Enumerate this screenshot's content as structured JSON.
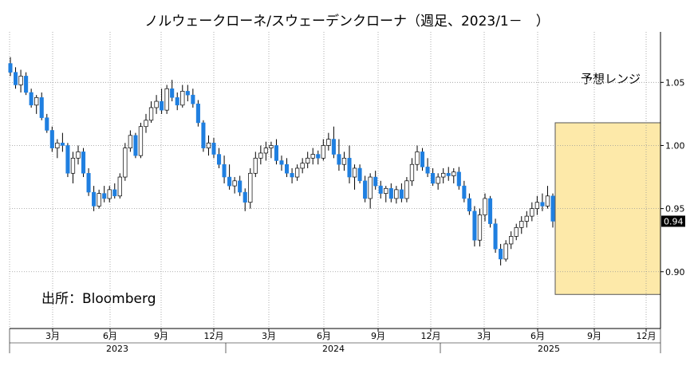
{
  "chart_data": {
    "type": "candlestick",
    "title": "ノルウェークローネ/スウェーデンクローナ（週足、2023/1－　）",
    "source": "出所：Bloomberg",
    "forecast_band": {
      "label": "予想レンジ",
      "low": 0.882,
      "high": 1.018,
      "color": "#fde9a9"
    },
    "ylim": [
      0.855,
      1.09
    ],
    "y_ticks": [
      {
        "value": 1.05,
        "label": "1.05"
      },
      {
        "value": 1.0,
        "label": "1.00"
      },
      {
        "value": 0.95,
        "label": "0.95"
      },
      {
        "value": 0.9,
        "label": "0.90"
      }
    ],
    "last_value": {
      "value": 0.94,
      "label": "0.94"
    },
    "x_month_ticks": [
      "3月",
      "6月",
      "9月",
      "12月",
      "3月",
      "6月",
      "9月",
      "12月",
      "3月",
      "6月",
      "9月",
      "12月"
    ],
    "x_year_labels": [
      "2023",
      "2024",
      "2025"
    ],
    "colors": {
      "up": "#ffffff",
      "down": "#1f7fe0",
      "wick": "#000000",
      "grid": "#999999"
    },
    "candles": [
      [
        1.065,
        1.07,
        1.055,
        1.058
      ],
      [
        1.058,
        1.062,
        1.045,
        1.048
      ],
      [
        1.048,
        1.06,
        1.042,
        1.055
      ],
      [
        1.055,
        1.058,
        1.04,
        1.042
      ],
      [
        1.042,
        1.045,
        1.03,
        1.032
      ],
      [
        1.032,
        1.04,
        1.025,
        1.038
      ],
      [
        1.038,
        1.042,
        1.02,
        1.022
      ],
      [
        1.022,
        1.025,
        1.01,
        1.012
      ],
      [
        1.012,
        1.015,
        0.995,
        0.998
      ],
      [
        0.998,
        1.005,
        0.99,
        1.002
      ],
      [
        1.002,
        1.01,
        0.995,
        1.0
      ],
      [
        1.0,
        1.002,
        0.975,
        0.978
      ],
      [
        0.978,
        0.995,
        0.97,
        0.99
      ],
      [
        0.99,
        1.0,
        0.985,
        0.995
      ],
      [
        0.995,
        0.998,
        0.975,
        0.978
      ],
      [
        0.978,
        0.982,
        0.96,
        0.963
      ],
      [
        0.963,
        0.968,
        0.948,
        0.952
      ],
      [
        0.952,
        0.965,
        0.95,
        0.962
      ],
      [
        0.962,
        0.968,
        0.955,
        0.958
      ],
      [
        0.958,
        0.968,
        0.955,
        0.965
      ],
      [
        0.965,
        0.97,
        0.958,
        0.96
      ],
      [
        0.96,
        0.978,
        0.958,
        0.975
      ],
      [
        0.975,
        1.002,
        0.972,
        0.998
      ],
      [
        0.998,
        1.012,
        0.995,
        1.008
      ],
      [
        1.008,
        1.01,
        0.99,
        0.992
      ],
      [
        0.992,
        1.018,
        0.99,
        1.015
      ],
      [
        1.015,
        1.025,
        1.01,
        1.02
      ],
      [
        1.02,
        1.035,
        1.018,
        1.03
      ],
      [
        1.03,
        1.04,
        1.025,
        1.035
      ],
      [
        1.035,
        1.045,
        1.025,
        1.028
      ],
      [
        1.028,
        1.048,
        1.025,
        1.045
      ],
      [
        1.045,
        1.052,
        1.035,
        1.038
      ],
      [
        1.038,
        1.042,
        1.028,
        1.032
      ],
      [
        1.032,
        1.048,
        1.03,
        1.043
      ],
      [
        1.043,
        1.048,
        1.035,
        1.04
      ],
      [
        1.04,
        1.045,
        1.03,
        1.033
      ],
      [
        1.033,
        1.036,
        1.015,
        1.018
      ],
      [
        1.018,
        1.02,
        0.995,
        0.998
      ],
      [
        0.998,
        1.008,
        0.992,
        1.002
      ],
      [
        1.002,
        1.006,
        0.99,
        0.993
      ],
      [
        0.993,
        0.998,
        0.982,
        0.985
      ],
      [
        0.985,
        0.992,
        0.97,
        0.975
      ],
      [
        0.975,
        0.985,
        0.965,
        0.968
      ],
      [
        0.968,
        0.975,
        0.962,
        0.972
      ],
      [
        0.972,
        0.976,
        0.96,
        0.963
      ],
      [
        0.963,
        0.966,
        0.948,
        0.955
      ],
      [
        0.955,
        0.982,
        0.95,
        0.978
      ],
      [
        0.978,
        0.995,
        0.975,
        0.99
      ],
      [
        0.99,
        1.0,
        0.985,
        0.994
      ],
      [
        0.994,
        1.003,
        0.988,
        0.998
      ],
      [
        0.998,
        1.003,
        0.99,
        1.0
      ],
      [
        1.0,
        1.005,
        0.985,
        0.988
      ],
      [
        0.988,
        0.992,
        0.98,
        0.985
      ],
      [
        0.985,
        0.99,
        0.975,
        0.978
      ],
      [
        0.978,
        0.982,
        0.97,
        0.975
      ],
      [
        0.975,
        0.985,
        0.972,
        0.982
      ],
      [
        0.982,
        0.99,
        0.978,
        0.986
      ],
      [
        0.986,
        0.995,
        0.982,
        0.99
      ],
      [
        0.99,
        0.998,
        0.985,
        0.993
      ],
      [
        0.993,
        0.996,
        0.985,
        0.99
      ],
      [
        0.99,
        1.005,
        0.988,
        1.0
      ],
      [
        1.0,
        1.01,
        0.996,
        1.005
      ],
      [
        1.005,
        1.015,
        0.99,
        0.993
      ],
      [
        0.993,
        1.005,
        0.98,
        0.985
      ],
      [
        0.985,
        0.995,
        0.98,
        0.99
      ],
      [
        0.99,
        1.0,
        0.97,
        0.975
      ],
      [
        0.975,
        0.985,
        0.965,
        0.982
      ],
      [
        0.982,
        0.985,
        0.97,
        0.972
      ],
      [
        0.972,
        0.976,
        0.955,
        0.958
      ],
      [
        0.958,
        0.978,
        0.95,
        0.975
      ],
      [
        0.975,
        0.98,
        0.965,
        0.968
      ],
      [
        0.968,
        0.972,
        0.958,
        0.962
      ],
      [
        0.962,
        0.968,
        0.955,
        0.966
      ],
      [
        0.966,
        0.97,
        0.955,
        0.958
      ],
      [
        0.958,
        0.968,
        0.954,
        0.965
      ],
      [
        0.965,
        0.97,
        0.955,
        0.958
      ],
      [
        0.958,
        0.975,
        0.955,
        0.972
      ],
      [
        0.972,
        0.99,
        0.968,
        0.985
      ],
      [
        0.985,
        1.0,
        0.98,
        0.995
      ],
      [
        0.995,
        0.998,
        0.98,
        0.983
      ],
      [
        0.983,
        0.99,
        0.975,
        0.978
      ],
      [
        0.978,
        0.982,
        0.968,
        0.97
      ],
      [
        0.97,
        0.978,
        0.965,
        0.975
      ],
      [
        0.975,
        0.982,
        0.97,
        0.978
      ],
      [
        0.978,
        0.983,
        0.972,
        0.976
      ],
      [
        0.976,
        0.982,
        0.97,
        0.979
      ],
      [
        0.979,
        0.983,
        0.965,
        0.968
      ],
      [
        0.968,
        0.972,
        0.955,
        0.958
      ],
      [
        0.958,
        0.962,
        0.945,
        0.948
      ],
      [
        0.948,
        0.952,
        0.92,
        0.925
      ],
      [
        0.925,
        0.95,
        0.92,
        0.945
      ],
      [
        0.945,
        0.962,
        0.94,
        0.958
      ],
      [
        0.958,
        0.96,
        0.935,
        0.938
      ],
      [
        0.938,
        0.942,
        0.915,
        0.918
      ],
      [
        0.918,
        0.922,
        0.905,
        0.91
      ],
      [
        0.91,
        0.925,
        0.908,
        0.922
      ],
      [
        0.922,
        0.932,
        0.918,
        0.928
      ],
      [
        0.928,
        0.938,
        0.925,
        0.935
      ],
      [
        0.935,
        0.944,
        0.93,
        0.94
      ],
      [
        0.94,
        0.948,
        0.935,
        0.944
      ],
      [
        0.944,
        0.955,
        0.94,
        0.95
      ],
      [
        0.95,
        0.96,
        0.945,
        0.955
      ],
      [
        0.955,
        0.962,
        0.948,
        0.952
      ],
      [
        0.952,
        0.968,
        0.95,
        0.96
      ],
      [
        0.96,
        0.962,
        0.935,
        0.94
      ]
    ]
  }
}
